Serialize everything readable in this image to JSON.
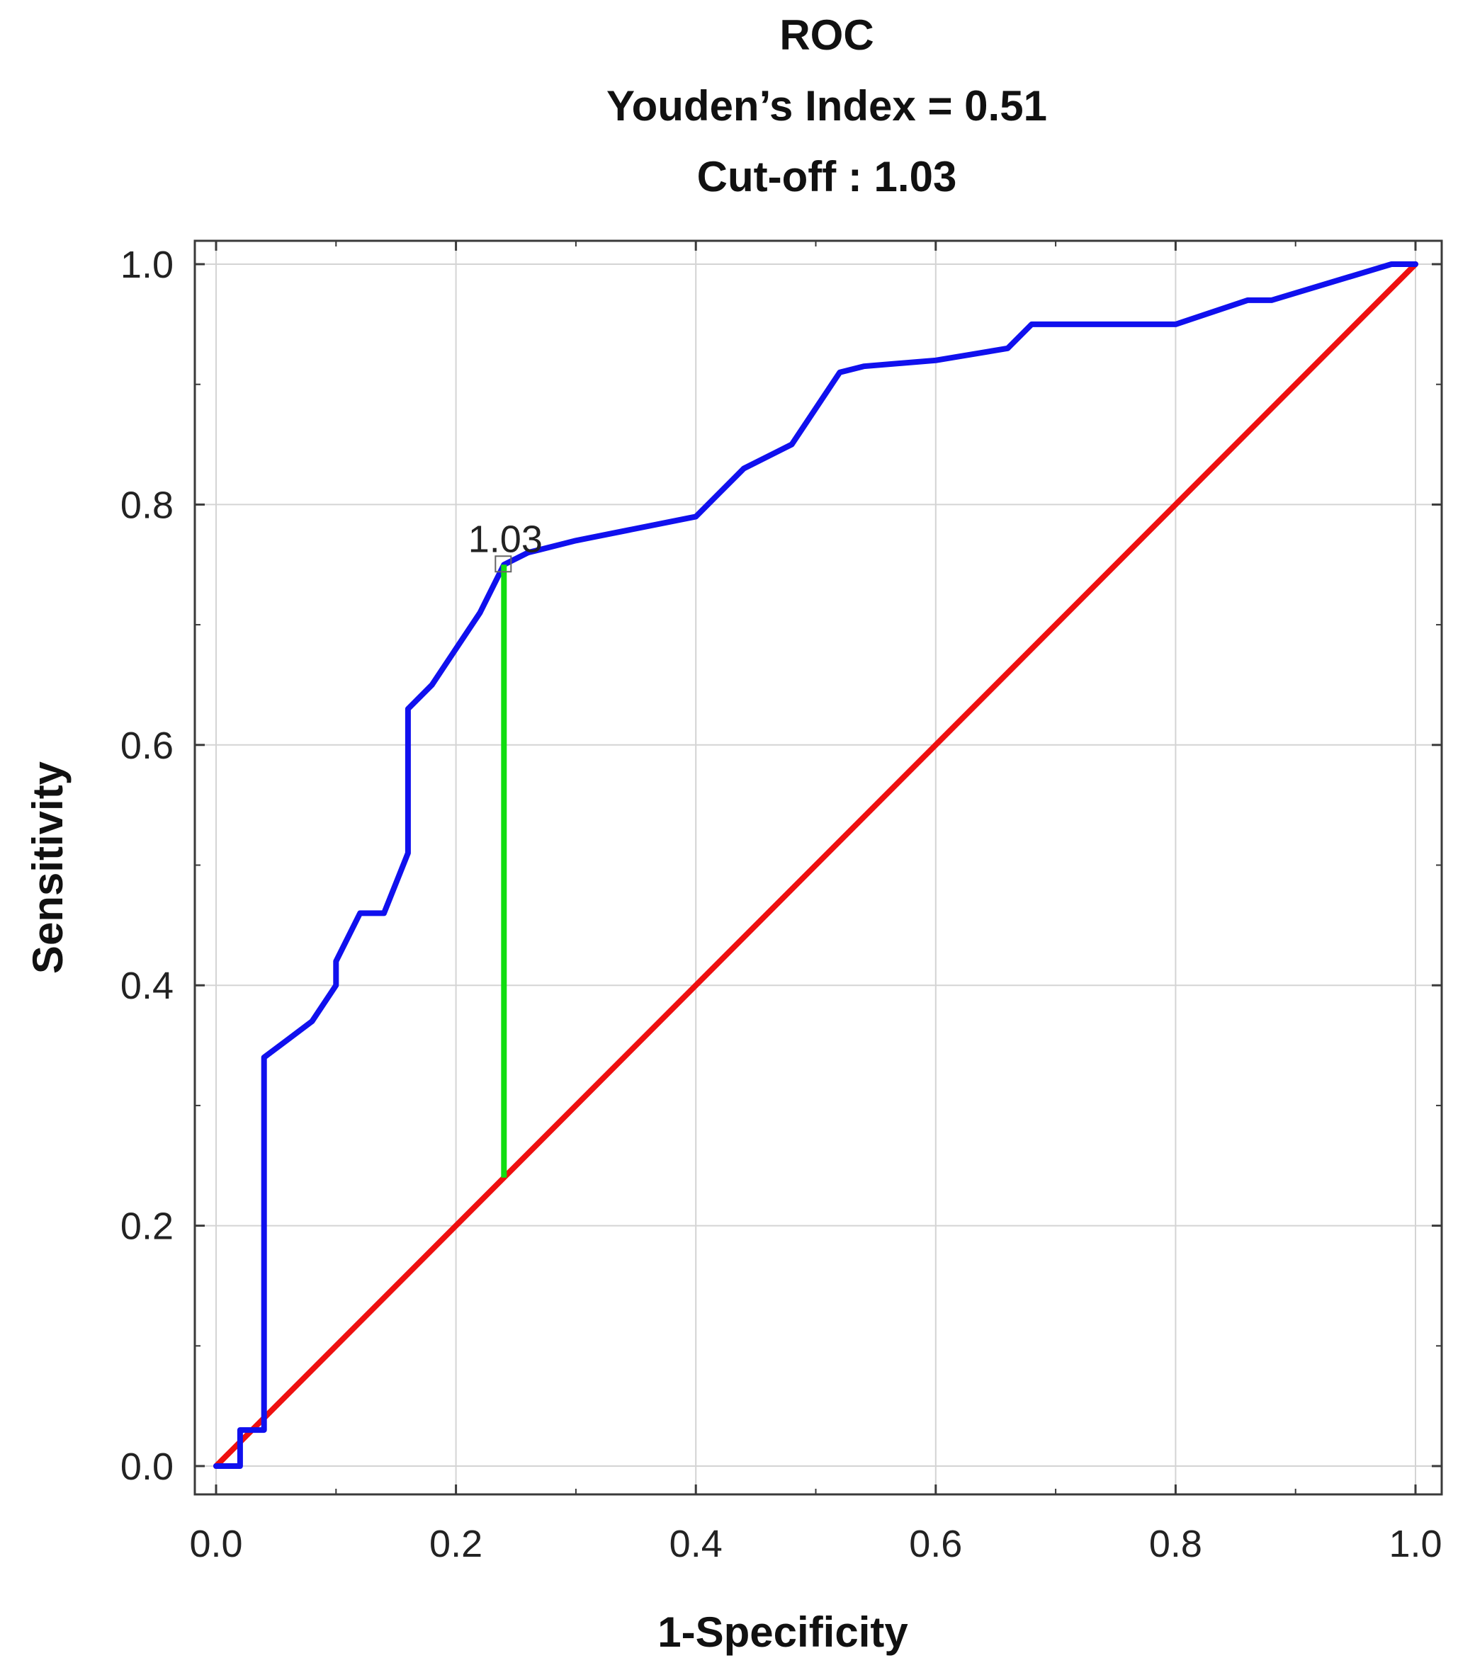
{
  "chart_data": {
    "type": "line",
    "title": "ROC",
    "subtitle_lines": [
      "Youden’s Index = 0.51",
      "Cut-off : 1.03"
    ],
    "xlabel": "1-Specificity",
    "ylabel": "Sensitivity",
    "xlim": [
      0,
      1
    ],
    "ylim": [
      0,
      1
    ],
    "xticks": [
      "0.0",
      "0.2",
      "0.4",
      "0.6",
      "0.8",
      "1.0"
    ],
    "yticks": [
      "0.0",
      "0.2",
      "0.4",
      "0.6",
      "0.8",
      "1.0"
    ],
    "grid": true,
    "series": [
      {
        "color": "#1010ee",
        "x": [
          0.0,
          0.02,
          0.02,
          0.04,
          0.04,
          0.06,
          0.08,
          0.1,
          0.1,
          0.12,
          0.14,
          0.16,
          0.16,
          0.18,
          0.2,
          0.22,
          0.24,
          0.26,
          0.3,
          0.4,
          0.44,
          0.48,
          0.52,
          0.54,
          0.6,
          0.66,
          0.68,
          0.8,
          0.86,
          0.88,
          0.98,
          1.0
        ],
        "y": [
          0.0,
          0.0,
          0.03,
          0.03,
          0.34,
          0.355,
          0.37,
          0.4,
          0.42,
          0.46,
          0.46,
          0.51,
          0.63,
          0.65,
          0.68,
          0.71,
          0.75,
          0.76,
          0.77,
          0.79,
          0.83,
          0.85,
          0.91,
          0.915,
          0.92,
          0.93,
          0.95,
          0.95,
          0.97,
          0.97,
          1.0,
          1.0
        ]
      },
      {
        "color": "#ee1010",
        "x": [
          0.0,
          1.0
        ],
        "y": [
          0.0,
          1.0
        ]
      }
    ],
    "youden_line": {
      "color": "#10dd10",
      "x": 0.24,
      "y_from": 0.24,
      "y_to": 0.75
    },
    "cutoff_point": {
      "x": 0.24,
      "y": 0.75,
      "label": "1.03"
    }
  }
}
